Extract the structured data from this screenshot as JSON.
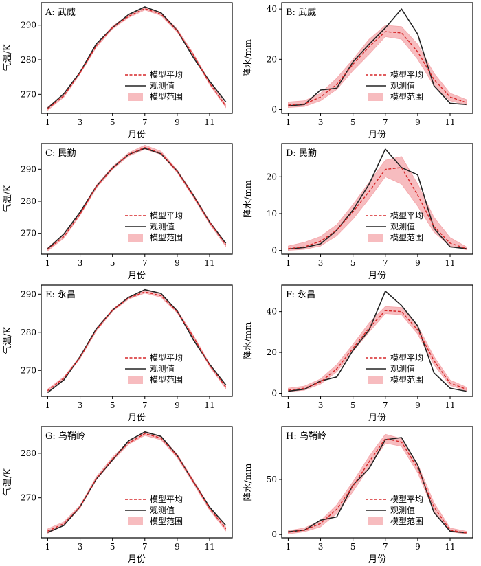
{
  "legend_labels": {
    "mean": "模型平均",
    "obs": "观测值",
    "range": "模型范围"
  },
  "colors": {
    "mean": "#d62728",
    "obs": "#222222",
    "range": "#f4a6aa"
  },
  "chart_data": [
    {
      "type": "line",
      "title": "A: 武威",
      "xlabel": "月份",
      "ylabel": "气温/K",
      "x": [
        1,
        2,
        3,
        4,
        5,
        6,
        7,
        8,
        9,
        10,
        11,
        12
      ],
      "xticks": [
        1,
        3,
        5,
        7,
        9,
        11
      ],
      "ylim": [
        264.5,
        296.5
      ],
      "yticks": [
        270,
        280,
        290
      ],
      "grid": false,
      "legend_position": "lower-right",
      "series": [
        {
          "name": "模型平均",
          "values": [
            265.8,
            269.6,
            276.2,
            284.0,
            289.3,
            292.6,
            294.8,
            293.2,
            288.4,
            281.4,
            273.2,
            266.6
          ]
        },
        {
          "name": "观测值",
          "values": [
            266.0,
            270.2,
            276.4,
            284.6,
            289.3,
            293.1,
            295.3,
            293.6,
            288.5,
            280.6,
            273.8,
            267.8
          ]
        },
        {
          "name": "模型范围",
          "lower": [
            265.4,
            269.2,
            275.9,
            283.6,
            288.9,
            292.2,
            294.4,
            292.8,
            288.0,
            281.0,
            272.8,
            266.2
          ],
          "upper": [
            266.3,
            270.0,
            276.6,
            284.5,
            289.7,
            293.0,
            295.2,
            293.7,
            288.9,
            281.8,
            273.7,
            267.1
          ]
        }
      ]
    },
    {
      "type": "line",
      "title": "B: 武威",
      "xlabel": "月份",
      "ylabel": "降水/mm",
      "x": [
        1,
        2,
        3,
        4,
        5,
        6,
        7,
        8,
        9,
        10,
        11,
        12
      ],
      "xticks": [
        1,
        3,
        5,
        7,
        9,
        11
      ],
      "ylim": [
        -1.5,
        42.5
      ],
      "yticks": [
        0,
        20,
        40
      ],
      "grid": false,
      "legend_position": "lower-right",
      "series": [
        {
          "name": "模型平均",
          "values": [
            1.8,
            2.2,
            5.0,
            10.0,
            18.0,
            25.0,
            31.0,
            30.5,
            23.0,
            12.0,
            5.0,
            2.8
          ]
        },
        {
          "name": "观测值",
          "values": [
            1.5,
            2.0,
            7.8,
            8.5,
            19.0,
            26.0,
            32.5,
            40.0,
            30.0,
            9.5,
            2.5,
            2.0
          ]
        },
        {
          "name": "模型范围",
          "lower": [
            0.8,
            1.2,
            3.5,
            8.0,
            15.5,
            22.0,
            29.0,
            28.0,
            20.0,
            9.5,
            3.5,
            1.8
          ],
          "upper": [
            3.0,
            3.5,
            6.5,
            12.5,
            20.0,
            28.0,
            33.5,
            33.0,
            26.0,
            14.5,
            6.5,
            4.0
          ]
        }
      ]
    },
    {
      "type": "line",
      "title": "C: 民勤",
      "xlabel": "月份",
      "ylabel": "气温/K",
      "x": [
        1,
        2,
        3,
        4,
        5,
        6,
        7,
        8,
        9,
        10,
        11,
        12
      ],
      "xticks": [
        1,
        3,
        5,
        7,
        9,
        11
      ],
      "ylim": [
        263.5,
        298
      ],
      "yticks": [
        270,
        280,
        290
      ],
      "grid": false,
      "legend_position": "lower-right",
      "series": [
        {
          "name": "模型平均",
          "values": [
            265.0,
            269.0,
            276.0,
            284.5,
            290.3,
            294.6,
            296.8,
            295.0,
            289.3,
            281.6,
            273.4,
            266.4
          ]
        },
        {
          "name": "观测值",
          "values": [
            265.2,
            269.8,
            276.6,
            284.6,
            290.4,
            294.6,
            296.5,
            294.8,
            289.4,
            281.8,
            273.5,
            266.9
          ]
        },
        {
          "name": "模型范围",
          "lower": [
            264.5,
            268.5,
            275.6,
            284.0,
            289.9,
            294.1,
            296.2,
            294.6,
            288.9,
            281.2,
            272.9,
            265.9
          ],
          "upper": [
            265.5,
            269.6,
            276.5,
            285.0,
            290.8,
            295.1,
            297.5,
            295.6,
            289.8,
            282.2,
            273.9,
            266.9
          ]
        }
      ]
    },
    {
      "type": "line",
      "title": "D: 民勤",
      "xlabel": "月份",
      "ylabel": "降水/mm",
      "x": [
        1,
        2,
        3,
        4,
        5,
        6,
        7,
        8,
        9,
        10,
        11,
        12
      ],
      "xticks": [
        1,
        3,
        5,
        7,
        9,
        11
      ],
      "ylim": [
        -1,
        29
      ],
      "yticks": [
        0,
        10,
        20
      ],
      "grid": false,
      "legend_position": "lower-right",
      "series": [
        {
          "name": "模型平均",
          "values": [
            0.5,
            1.0,
            2.5,
            5.5,
            10.5,
            16.0,
            22.0,
            22.5,
            15.0,
            6.5,
            2.0,
            0.5
          ]
        },
        {
          "name": "观测值",
          "values": [
            0.4,
            0.8,
            1.8,
            5.5,
            11.0,
            18.0,
            27.5,
            22.5,
            20.5,
            6.0,
            1.0,
            0.5
          ]
        },
        {
          "name": "模型范围",
          "lower": [
            0.0,
            0.3,
            1.2,
            4.0,
            8.5,
            14.0,
            20.0,
            18.0,
            12.0,
            5.0,
            1.2,
            0.2
          ],
          "upper": [
            1.2,
            2.2,
            3.8,
            7.0,
            12.5,
            18.5,
            24.5,
            25.5,
            18.0,
            9.0,
            3.5,
            1.0
          ]
        }
      ]
    },
    {
      "type": "line",
      "title": "E: 永昌",
      "xlabel": "月份",
      "ylabel": "气温/K",
      "x": [
        1,
        2,
        3,
        4,
        5,
        6,
        7,
        8,
        9,
        10,
        11,
        12
      ],
      "xticks": [
        1,
        3,
        5,
        7,
        9,
        11
      ],
      "ylim": [
        263.2,
        292.4
      ],
      "yticks": [
        270,
        280,
        290
      ],
      "grid": false,
      "legend_position": "lower-right",
      "series": [
        {
          "name": "模型平均",
          "values": [
            264.7,
            268.0,
            273.4,
            280.6,
            285.8,
            289.0,
            290.6,
            289.6,
            285.4,
            278.8,
            271.4,
            265.6
          ]
        },
        {
          "name": "观测值",
          "values": [
            264.2,
            267.5,
            273.6,
            280.9,
            285.8,
            289.2,
            291.2,
            290.2,
            285.6,
            278.0,
            271.6,
            266.2
          ]
        },
        {
          "name": "模型范围",
          "lower": [
            264.3,
            267.7,
            273.1,
            280.3,
            285.5,
            288.7,
            290.3,
            289.2,
            285.1,
            278.4,
            271.0,
            265.2
          ],
          "upper": [
            265.1,
            268.3,
            273.7,
            281.0,
            286.1,
            289.3,
            291.0,
            289.9,
            285.8,
            279.2,
            271.8,
            266.0
          ]
        }
      ]
    },
    {
      "type": "line",
      "title": "F: 永昌",
      "xlabel": "月份",
      "ylabel": "降水/mm",
      "x": [
        1,
        2,
        3,
        4,
        5,
        6,
        7,
        8,
        9,
        10,
        11,
        12
      ],
      "xticks": [
        1,
        3,
        5,
        7,
        9,
        11
      ],
      "ylim": [
        -1.5,
        53
      ],
      "yticks": [
        0,
        20,
        40
      ],
      "grid": false,
      "legend_position": "lower-right",
      "series": [
        {
          "name": "模型平均",
          "values": [
            1.5,
            2.5,
            5.5,
            12.0,
            22.0,
            32.0,
            40.5,
            40.0,
            31.0,
            16.0,
            5.0,
            2.0
          ]
        },
        {
          "name": "观测值",
          "values": [
            1.0,
            2.0,
            6.0,
            8.0,
            21.0,
            31.0,
            50.0,
            43.0,
            33.0,
            10.0,
            2.5,
            1.0
          ]
        },
        {
          "name": "模型范围",
          "lower": [
            0.8,
            1.5,
            4.5,
            10.5,
            20.5,
            30.0,
            39.0,
            38.5,
            29.0,
            14.0,
            3.8,
            1.2
          ],
          "upper": [
            2.5,
            3.5,
            7.0,
            14.0,
            24.0,
            34.5,
            42.5,
            42.0,
            33.0,
            18.0,
            6.5,
            3.0
          ]
        }
      ]
    },
    {
      "type": "line",
      "title": "G: 乌鞘岭",
      "xlabel": "月份",
      "ylabel": "气温/K",
      "x": [
        1,
        2,
        3,
        4,
        5,
        6,
        7,
        8,
        9,
        10,
        11,
        12
      ],
      "xticks": [
        1,
        3,
        5,
        7,
        9,
        11
      ],
      "ylim": [
        261,
        286
      ],
      "yticks": [
        270,
        280
      ],
      "grid": false,
      "legend_position": "lower-right",
      "series": [
        {
          "name": "模型平均",
          "values": [
            262.5,
            264.2,
            268.0,
            274.3,
            278.7,
            282.3,
            284.4,
            283.4,
            279.4,
            273.6,
            267.6,
            263.0
          ]
        },
        {
          "name": "观测值",
          "values": [
            262.2,
            263.8,
            268.0,
            274.2,
            278.5,
            282.8,
            284.8,
            283.8,
            279.5,
            273.6,
            267.9,
            263.8
          ]
        },
        {
          "name": "模型范围",
          "lower": [
            262.0,
            263.8,
            267.7,
            274.0,
            278.3,
            282.0,
            284.0,
            283.0,
            279.0,
            273.2,
            267.2,
            262.6
          ],
          "upper": [
            263.0,
            264.6,
            268.3,
            274.7,
            279.1,
            282.7,
            284.9,
            283.8,
            279.8,
            274.0,
            268.0,
            263.4
          ]
        }
      ]
    },
    {
      "type": "line",
      "title": "H: 乌鞘岭",
      "xlabel": "月份",
      "ylabel": "降水/mm",
      "x": [
        1,
        2,
        3,
        4,
        5,
        6,
        7,
        8,
        9,
        10,
        11,
        12
      ],
      "xticks": [
        1,
        3,
        5,
        7,
        9,
        11
      ],
      "ylim": [
        -3,
        98
      ],
      "yticks": [
        0,
        50
      ],
      "grid": false,
      "legend_position": "lower-right",
      "series": [
        {
          "name": "模型平均",
          "values": [
            2.0,
            4.0,
            10.0,
            23.0,
            44.0,
            66.0,
            87.0,
            84.0,
            60.0,
            25.0,
            4.0,
            1.5
          ]
        },
        {
          "name": "观测值",
          "values": [
            2.5,
            4.0,
            13.0,
            16.0,
            45.0,
            60.0,
            86.0,
            88.0,
            63.0,
            20.0,
            3.0,
            1.5
          ]
        },
        {
          "name": "模型范围",
          "lower": [
            0.5,
            2.5,
            7.0,
            19.0,
            39.0,
            61.0,
            83.0,
            80.0,
            56.0,
            21.0,
            2.5,
            0.5
          ],
          "upper": [
            3.5,
            6.0,
            12.5,
            27.0,
            48.0,
            71.0,
            91.0,
            87.0,
            64.0,
            29.0,
            6.0,
            3.0
          ]
        }
      ]
    }
  ]
}
